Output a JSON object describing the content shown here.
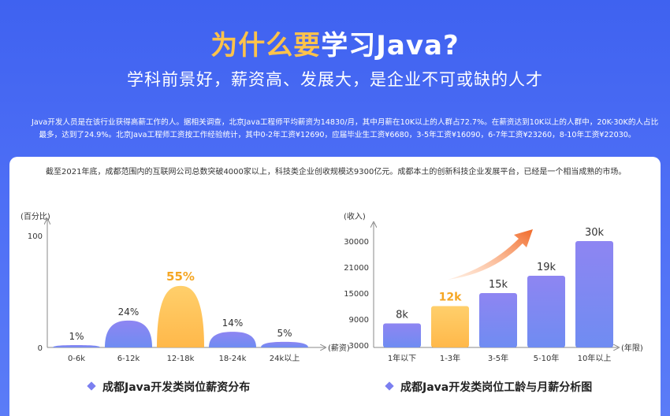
{
  "header": {
    "title_highlight": "为什么要",
    "title_rest": "学习Java?",
    "subtitle": "学科前景好，薪资高、发展大，是企业不可或缺的人才",
    "intro": "Java开发人员是在该行业获得高薪工作的人。据相关调查，北京Java工程师平均薪资为14830/月，其中月薪在10K以上的人群占72.7%。在薪资达到10K以上的人群中，20K-30K的人占比最多，达到了24.9%。北京Java工程师工资按工作经验统计，其中0-2年工资¥12690，应届毕业生工资¥6680，3-5年工资¥16090，6-7年工资¥23260，8-10年工资¥22030。"
  },
  "card": {
    "text": "截至2021年底，成都范围内的互联网公司总数突破4000家以上，科技类企业创收规模达9300亿元。成都本土的创新科技企业发展平台，已经是一个相当成熟的市场。"
  },
  "colors": {
    "bar": "#7f86f0",
    "highlight": "#ffc55a",
    "highlight_text": "#f5a623",
    "arrow": "#f07a3a",
    "axis": "#888888"
  },
  "chart_data": [
    {
      "type": "bar",
      "title": "成都Java开发类岗位薪资分布",
      "ylabel": "(百分比)",
      "xlabel": "(薪资)",
      "ylim": [
        0,
        100
      ],
      "yticks": [
        "100",
        "0"
      ],
      "categories": [
        "0-6k",
        "6-12k",
        "12-18k",
        "18-24k",
        "24k以上"
      ],
      "values": [
        1,
        24,
        55,
        14,
        5
      ],
      "data_labels": [
        "1%",
        "24%",
        "55%",
        "14%",
        "5%"
      ],
      "highlight_index": 2
    },
    {
      "type": "bar",
      "title": "成都Java开发类岗位工龄与月薪分析图",
      "ylabel": "(收入)",
      "xlabel": "(年限)",
      "ylim": [
        3000,
        30000
      ],
      "yticks": [
        "30000",
        "21000",
        "15000",
        "9000",
        "3000"
      ],
      "categories": [
        "1年以下",
        "1-3年",
        "3-5年",
        "5-10年",
        "10年以上"
      ],
      "values": [
        8000,
        12000,
        15000,
        19000,
        30000
      ],
      "data_labels": [
        "8k",
        "12k",
        "15k",
        "19k",
        "30k"
      ],
      "highlight_index": 1,
      "trend_arrow": true
    }
  ]
}
